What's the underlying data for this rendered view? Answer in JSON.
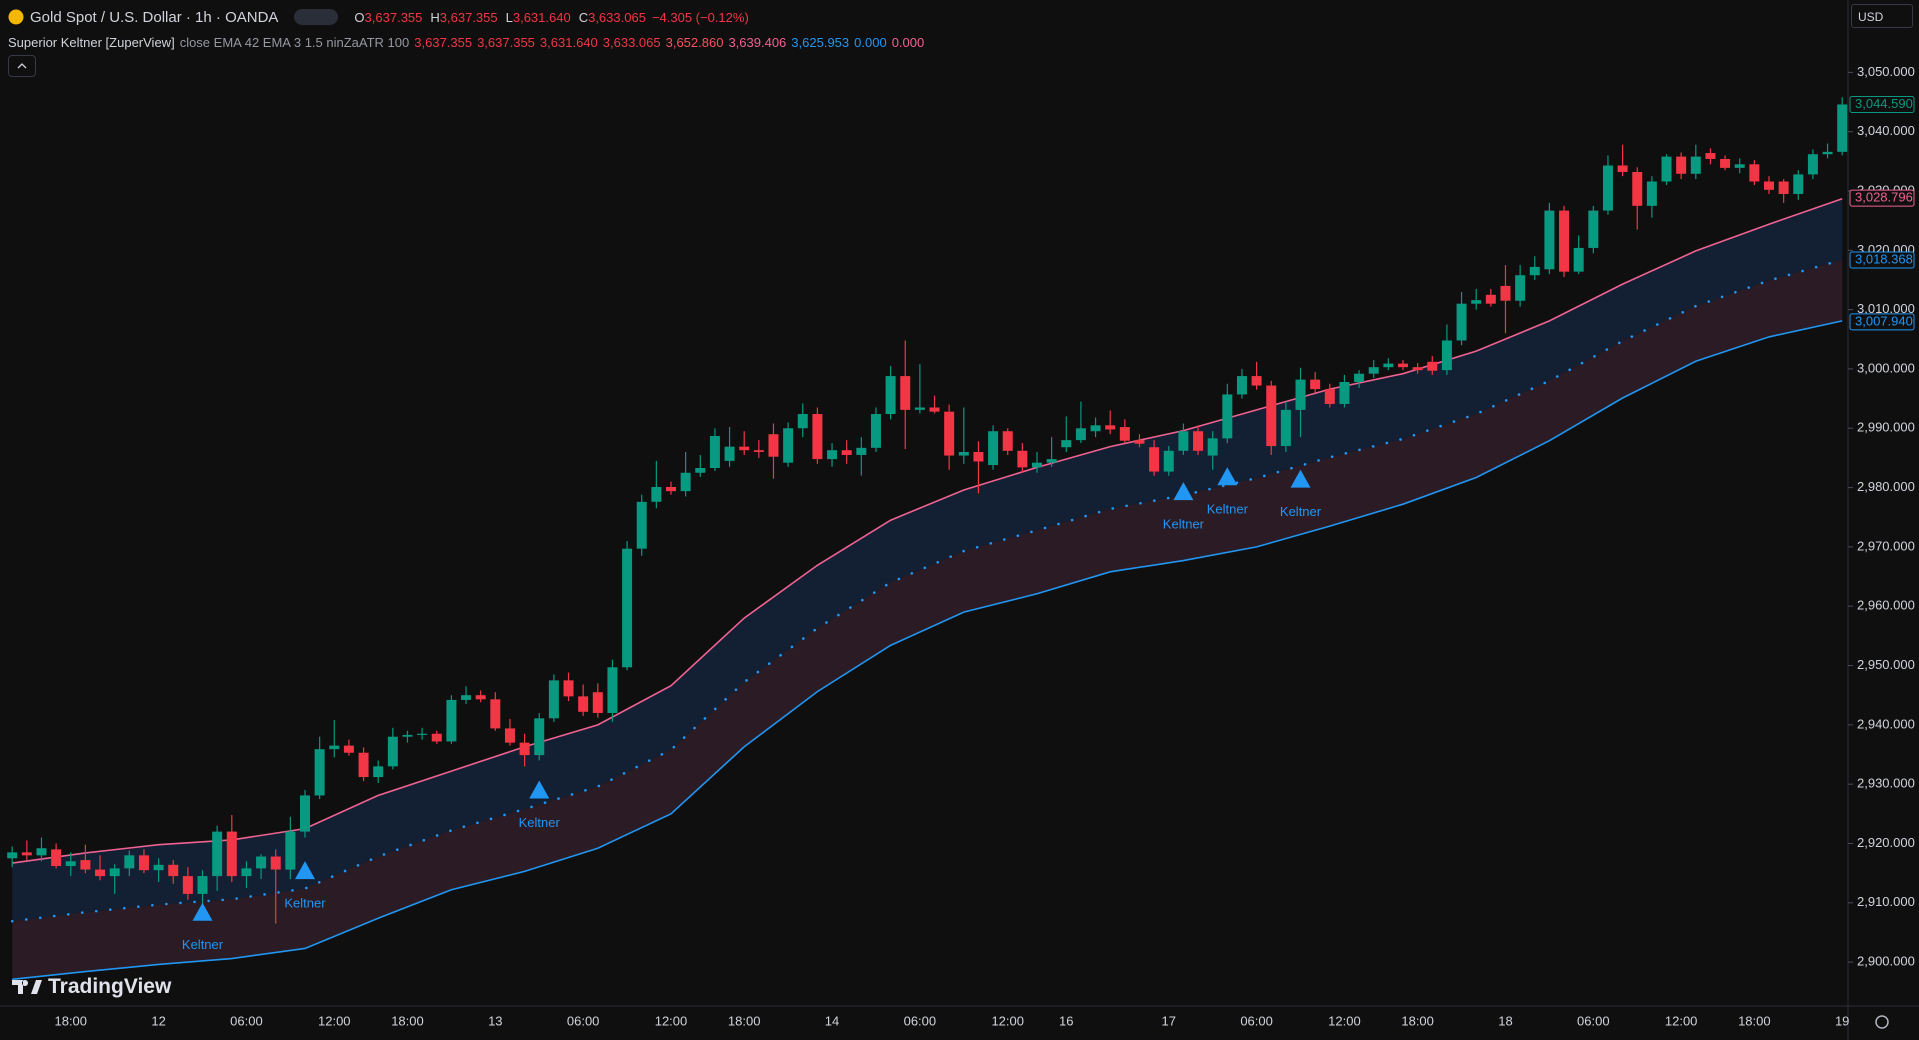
{
  "header": {
    "symbol": "Gold Spot / U.S. Dollar · 1h · OANDA",
    "ohlc": [
      {
        "key": "O",
        "value": "3,637.355"
      },
      {
        "key": "H",
        "value": "3,637.355"
      },
      {
        "key": "L",
        "value": "3,631.640"
      },
      {
        "key": "C",
        "value": "3,633.065"
      }
    ],
    "change": "−4.305 (−0.12%)"
  },
  "indicator": {
    "name": "Superior Keltner [ZuperView]",
    "params": "close EMA 42 EMA 3 1.5 ninZaATR 100",
    "values": [
      {
        "text": "3,637.355",
        "color": "#f23645"
      },
      {
        "text": "3,637.355",
        "color": "#f23645"
      },
      {
        "text": "3,631.640",
        "color": "#f23645"
      },
      {
        "text": "3,633.065",
        "color": "#f23645"
      },
      {
        "text": "3,652.860",
        "color": "#f7525f"
      },
      {
        "text": "3,639.406",
        "color": "#f06292"
      },
      {
        "text": "3,625.953",
        "color": "#2196f3"
      },
      {
        "text": "0.000",
        "color": "#2196f3"
      },
      {
        "text": "0.000",
        "color": "#f06292"
      }
    ]
  },
  "currency": "USD",
  "brand": "TradingView",
  "chart_data": {
    "type": "candlestick",
    "up_color": "#089981",
    "down_color": "#f23645",
    "categories": [
      null,
      null,
      null,
      null,
      "18:00",
      null,
      null,
      null,
      null,
      null,
      "12",
      null,
      null,
      null,
      null,
      null,
      "06:00",
      null,
      null,
      null,
      null,
      null,
      "12:00",
      null,
      null,
      null,
      null,
      "18:00",
      null,
      null,
      null,
      null,
      null,
      "13",
      null,
      null,
      null,
      null,
      null,
      "06:00",
      null,
      null,
      null,
      null,
      null,
      "12:00",
      null,
      null,
      null,
      null,
      "18:00",
      null,
      null,
      null,
      null,
      null,
      "14",
      null,
      null,
      null,
      null,
      null,
      "06:00",
      null,
      null,
      null,
      null,
      null,
      "12:00",
      null,
      null,
      null,
      "16",
      null,
      null,
      null,
      null,
      null,
      null,
      "17",
      null,
      null,
      null,
      null,
      null,
      "06:00",
      null,
      null,
      null,
      null,
      null,
      "12:00",
      null,
      null,
      null,
      null,
      "18:00",
      null,
      null,
      null,
      null,
      null,
      "18",
      null,
      null,
      null,
      null,
      null,
      "06:00",
      null,
      null,
      null,
      null,
      null,
      "12:00",
      null,
      null,
      null,
      null,
      "18:00",
      null,
      null,
      null,
      null,
      null,
      "19"
    ],
    "open": [
      2917.5,
      2918.5,
      2918.0,
      2919.0,
      2916.2,
      2917.2,
      2915.6,
      2914.5,
      2915.8,
      2918.0,
      2915.5,
      2916.4,
      2914.5,
      2911.5,
      2914.5,
      2922.0,
      2914.5,
      2915.8,
      2917.8,
      2915.6,
      2922.0,
      2928.1,
      2935.9,
      2936.5,
      2935.3,
      2931.2,
      2933.0,
      2938.0,
      2938.3,
      2938.5,
      2937.2,
      2944.2,
      2945.0,
      2944.3,
      2939.4,
      2937.0,
      2934.9,
      2941.1,
      2947.5,
      2944.8,
      2945.5,
      2942.0,
      2949.7,
      2969.7,
      2977.6,
      2980.1,
      2979.4,
      2982.5,
      2983.3,
      2984.5,
      2986.9,
      2986.3,
      2989.0,
      2984.2,
      2990.0,
      2992.4,
      2984.8,
      2986.3,
      2985.5,
      2986.7,
      2992.4,
      2998.8,
      2993.1,
      2993.5,
      2992.8,
      2985.4,
      2986.0,
      2983.8,
      2989.5,
      2986.2,
      2983.4,
      2984.2,
      2986.8,
      2988.0,
      2989.5,
      2990.5,
      2990.2,
      2988.0,
      2986.8,
      2982.7,
      2986.2,
      2989.5,
      2985.4,
      2988.3,
      2995.7,
      2998.8,
      2997.2,
      2987.0,
      2993.1,
      2998.2,
      2996.6,
      2994.1,
      2997.8,
      2999.2,
      3000.3,
      3000.9,
      3000.3,
      3001.2,
      2999.8,
      3004.8,
      3011.0,
      3012.5,
      3014.0,
      3011.5,
      3015.8,
      3016.8,
      3026.7,
      3016.4,
      3020.4,
      3026.7,
      3034.3,
      3033.2,
      3027.5,
      3031.6,
      3035.8,
      3032.9,
      3036.4,
      3035.4,
      3033.9,
      3034.5,
      3031.6,
      3031.6,
      3029.5,
      3032.8,
      3036.2,
      3036.6
    ],
    "high": [
      2919.5,
      2920.5,
      2921.0,
      2920.0,
      2918.5,
      2919.8,
      2918.0,
      2916.5,
      2918.8,
      2919.0,
      2917.5,
      2917.2,
      2916.0,
      2915.5,
      2923.0,
      2924.8,
      2917.0,
      2918.2,
      2919.0,
      2924.5,
      2929.0,
      2938.0,
      2940.8,
      2937.5,
      2936.2,
      2934.0,
      2939.5,
      2939.0,
      2939.5,
      2939.0,
      2945.0,
      2946.5,
      2945.8,
      2945.5,
      2941.0,
      2938.5,
      2942.0,
      2948.5,
      2948.8,
      2946.8,
      2947.0,
      2951.0,
      2971.0,
      2978.8,
      2984.5,
      2981.0,
      2986.0,
      2985.5,
      2990.0,
      2990.2,
      2989.5,
      2988.0,
      2990.8,
      2991.0,
      2994.2,
      2993.5,
      2987.5,
      2988.0,
      2988.5,
      2993.5,
      3000.5,
      3004.8,
      3000.8,
      2995.5,
      2994.0,
      2993.5,
      2987.8,
      2990.5,
      2990.0,
      2987.5,
      2986.0,
      2988.5,
      2992.0,
      2994.5,
      2991.8,
      2993.0,
      2991.5,
      2989.0,
      2988.0,
      2987.0,
      2990.8,
      2990.5,
      2989.5,
      2997.5,
      3000.0,
      3001.2,
      2998.0,
      2994.5,
      3000.2,
      2999.5,
      2997.5,
      2999.0,
      2999.8,
      3001.5,
      3001.8,
      3001.5,
      3001.0,
      3002.2,
      3007.5,
      3013.0,
      3013.5,
      3013.5,
      3017.5,
      3017.5,
      3019.0,
      3028.0,
      3027.5,
      3022.5,
      3027.5,
      3036.0,
      3037.8,
      3034.0,
      3032.5,
      3036.2,
      3036.5,
      3037.8,
      3037.2,
      3036.0,
      3035.5,
      3035.2,
      3032.5,
      3032.0,
      3033.5,
      3037.0,
      3038.0,
      3045.8
    ],
    "low": [
      2916.0,
      2917.2,
      2917.0,
      2915.8,
      2914.5,
      2915.0,
      2913.8,
      2911.5,
      2914.5,
      2915.0,
      2913.5,
      2913.2,
      2910.5,
      2909.5,
      2912.0,
      2913.5,
      2912.5,
      2914.0,
      2906.5,
      2914.0,
      2921.0,
      2927.5,
      2934.5,
      2934.8,
      2930.5,
      2930.2,
      2932.5,
      2937.0,
      2937.5,
      2936.8,
      2936.8,
      2943.5,
      2943.8,
      2939.0,
      2936.5,
      2933.0,
      2934.0,
      2940.5,
      2944.0,
      2941.5,
      2941.2,
      2940.5,
      2949.2,
      2968.5,
      2976.5,
      2978.8,
      2978.5,
      2981.8,
      2982.8,
      2983.5,
      2985.5,
      2985.0,
      2981.5,
      2983.5,
      2988.5,
      2984.0,
      2983.5,
      2984.0,
      2982.0,
      2986.0,
      2991.5,
      2986.5,
      2992.5,
      2992.5,
      2983.0,
      2984.0,
      2979.0,
      2983.0,
      2985.5,
      2982.5,
      2982.5,
      2983.5,
      2986.0,
      2987.5,
      2988.5,
      2989.0,
      2987.5,
      2986.8,
      2982.0,
      2982.0,
      2985.5,
      2985.5,
      2983.0,
      2987.5,
      2995.0,
      2996.5,
      2985.5,
      2986.0,
      2988.5,
      2996.0,
      2993.5,
      2993.5,
      2996.8,
      2998.5,
      2999.8,
      2999.8,
      2999.2,
      2999.0,
      2999.0,
      3004.0,
      3010.0,
      3010.5,
      3006.0,
      3010.5,
      3015.0,
      3016.0,
      3015.5,
      3016.0,
      3019.5,
      3026.0,
      3032.5,
      3023.5,
      3025.5,
      3031.0,
      3032.0,
      3032.0,
      3034.5,
      3033.5,
      3033.0,
      3031.0,
      3029.5,
      3028.0,
      3028.5,
      3032.0,
      3035.5,
      3036.0
    ],
    "close": [
      2918.5,
      2918.0,
      2919.2,
      2916.2,
      2917.0,
      2915.6,
      2914.5,
      2915.8,
      2918.0,
      2915.5,
      2916.4,
      2914.5,
      2911.5,
      2914.5,
      2922.0,
      2914.5,
      2915.8,
      2917.8,
      2915.6,
      2922.0,
      2928.1,
      2935.9,
      2936.5,
      2935.3,
      2931.2,
      2933.0,
      2938.0,
      2938.3,
      2938.5,
      2937.2,
      2944.2,
      2945.0,
      2944.3,
      2939.4,
      2937.0,
      2934.9,
      2941.1,
      2947.5,
      2944.8,
      2942.2,
      2942.0,
      2949.7,
      2969.7,
      2977.6,
      2980.1,
      2979.4,
      2982.5,
      2983.3,
      2988.7,
      2986.9,
      2986.3,
      2986.0,
      2985.2,
      2990.0,
      2992.4,
      2984.8,
      2986.3,
      2985.5,
      2986.7,
      2992.4,
      2998.8,
      2993.1,
      2993.5,
      2992.8,
      2985.4,
      2986.0,
      2984.4,
      2989.5,
      2986.2,
      2983.4,
      2984.2,
      2984.8,
      2988.0,
      2990.0,
      2990.5,
      2989.8,
      2987.9,
      2987.4,
      2982.7,
      2986.2,
      2989.5,
      2986.2,
      2988.3,
      2995.7,
      2998.8,
      2997.2,
      2987.0,
      2993.1,
      2998.2,
      2996.6,
      2994.1,
      2997.8,
      2999.2,
      3000.3,
      3000.9,
      3000.3,
      2999.8,
      2999.7,
      3004.8,
      3011.0,
      3011.6,
      3011.0,
      3011.5,
      3015.8,
      3017.2,
      3026.7,
      3016.4,
      3020.4,
      3026.7,
      3034.3,
      3033.2,
      3027.5,
      3031.6,
      3035.8,
      3032.9,
      3035.8,
      3035.4,
      3033.9,
      3034.5,
      3031.6,
      3030.2,
      3029.5,
      3032.8,
      3036.2,
      3036.6,
      3044.59
    ],
    "lines": [
      {
        "color": "#f06292",
        "style": "solid",
        "x": [
          0,
          5,
          10,
          15,
          20,
          25,
          30,
          35,
          40,
          45,
          50,
          55,
          60,
          65,
          70,
          75,
          80,
          85,
          90,
          95,
          100,
          105,
          110,
          115,
          120,
          125
        ],
        "values": [
          2916.7,
          2918.4,
          2919.8,
          2920.6,
          2922.5,
          2928.1,
          2932.2,
          2936.3,
          2940.0,
          2946.6,
          2958.0,
          2966.9,
          2974.5,
          2979.6,
          2983.4,
          2986.9,
          2989.6,
          2993.1,
          2996.6,
          2999.2,
          3003.0,
          3008.1,
          3014.3,
          3019.9,
          3024.4,
          3028.7
        ]
      },
      {
        "color": "#2196f3",
        "style": "dotted",
        "x": [
          0,
          5,
          10,
          15,
          20,
          25,
          30,
          35,
          40,
          45,
          50,
          55,
          60,
          65,
          70,
          75,
          80,
          85,
          90,
          95,
          100,
          105,
          110,
          115,
          120,
          125
        ],
        "values": [
          2906.9,
          2908.4,
          2909.7,
          2910.6,
          2912.4,
          2917.8,
          2922.2,
          2925.8,
          2929.6,
          2935.8,
          2947.2,
          2956.3,
          2964.0,
          2969.3,
          2972.8,
          2976.4,
          2978.7,
          2981.6,
          2985.1,
          2988.2,
          2992.4,
          2998.0,
          3004.7,
          3010.6,
          3014.9,
          3018.4
        ]
      },
      {
        "color": "#2196f3",
        "style": "solid",
        "x": [
          0,
          5,
          10,
          15,
          20,
          25,
          30,
          35,
          40,
          45,
          50,
          55,
          60,
          65,
          70,
          75,
          80,
          85,
          90,
          95,
          100,
          105,
          110,
          115,
          120,
          125
        ],
        "values": [
          2897.1,
          2898.4,
          2899.6,
          2900.6,
          2902.3,
          2907.4,
          2912.2,
          2915.3,
          2919.2,
          2925.0,
          2936.3,
          2945.6,
          2953.4,
          2959.0,
          2962.1,
          2965.8,
          2967.7,
          2970.0,
          2973.5,
          2977.2,
          2981.7,
          2987.9,
          2995.1,
          3001.3,
          3005.4,
          3008.1
        ]
      }
    ],
    "band_fill": [
      "#132033",
      "#2a1b24"
    ],
    "signals": {
      "color": "#2196f3",
      "x": [
        13,
        20,
        36,
        80,
        83,
        88
      ],
      "values": [
        2908.5,
        2915.5,
        2929.1,
        2979.4,
        2981.9,
        2981.5
      ],
      "labels": [
        "Keltner",
        "Keltner",
        "Keltner",
        "Keltner",
        "Keltner",
        "Keltner"
      ]
    },
    "price_tags": [
      {
        "value": 3044.59,
        "label": "3,044.590",
        "color": "#089981"
      },
      {
        "value": 3028.796,
        "label": "3,028.796",
        "color": "#f06292"
      },
      {
        "value": 3018.368,
        "label": "3,018.368",
        "color": "#2196f3"
      },
      {
        "value": 3007.94,
        "label": "3,007.940",
        "color": "#2196f3"
      }
    ],
    "ylim": [
      2892.6,
      3062.2
    ],
    "yticks": [
      {
        "value": 2900,
        "label": "2,900.000"
      },
      {
        "value": 2910,
        "label": "2,910.000"
      },
      {
        "value": 2920,
        "label": "2,920.000"
      },
      {
        "value": 2930,
        "label": "2,930.000"
      },
      {
        "value": 2940,
        "label": "2,940.000"
      },
      {
        "value": 2950,
        "label": "2,950.000"
      },
      {
        "value": 2960,
        "label": "2,960.000"
      },
      {
        "value": 2970,
        "label": "2,970.000"
      },
      {
        "value": 2980,
        "label": "2,980.000"
      },
      {
        "value": 2990,
        "label": "2,990.000"
      },
      {
        "value": 3000,
        "label": "3,000.000"
      },
      {
        "value": 3010,
        "label": "3,010.000"
      },
      {
        "value": 3020,
        "label": "3,020.000"
      },
      {
        "value": 3030,
        "label": "3,030.000"
      },
      {
        "value": 3040,
        "label": "3,040.000"
      },
      {
        "value": 3050,
        "label": "3,050.000"
      }
    ],
    "grid": false
  }
}
